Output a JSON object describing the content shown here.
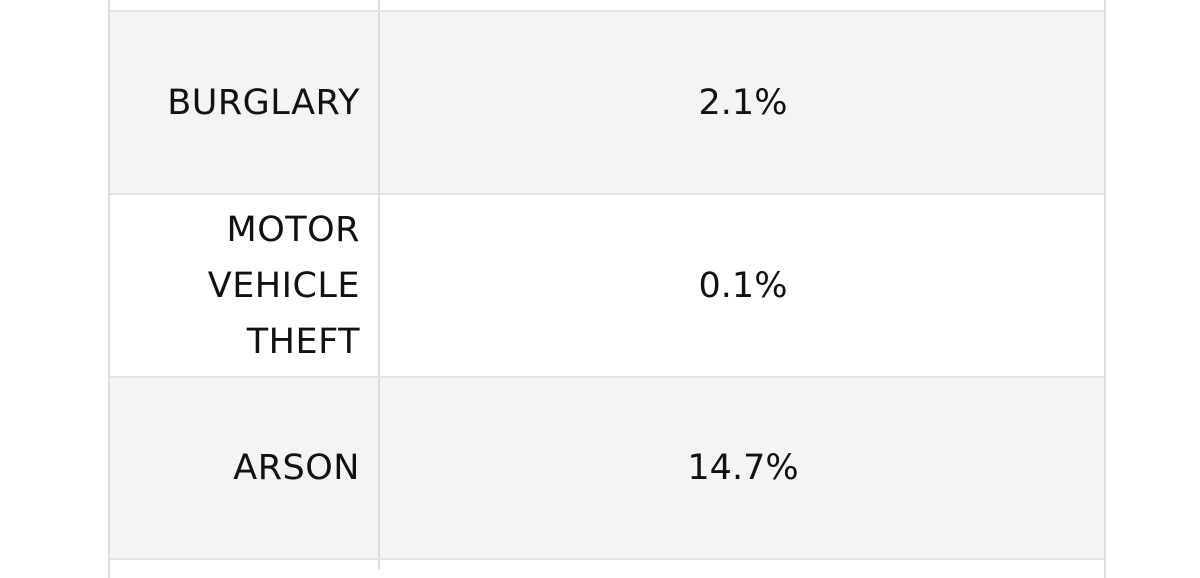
{
  "table": {
    "rows": [
      [
        "BURGLARY",
        "2.1%"
      ],
      [
        "MOTOR VEHICLE THEFT",
        "0.1%"
      ],
      [
        "ARSON",
        "14.7%"
      ]
    ]
  }
}
